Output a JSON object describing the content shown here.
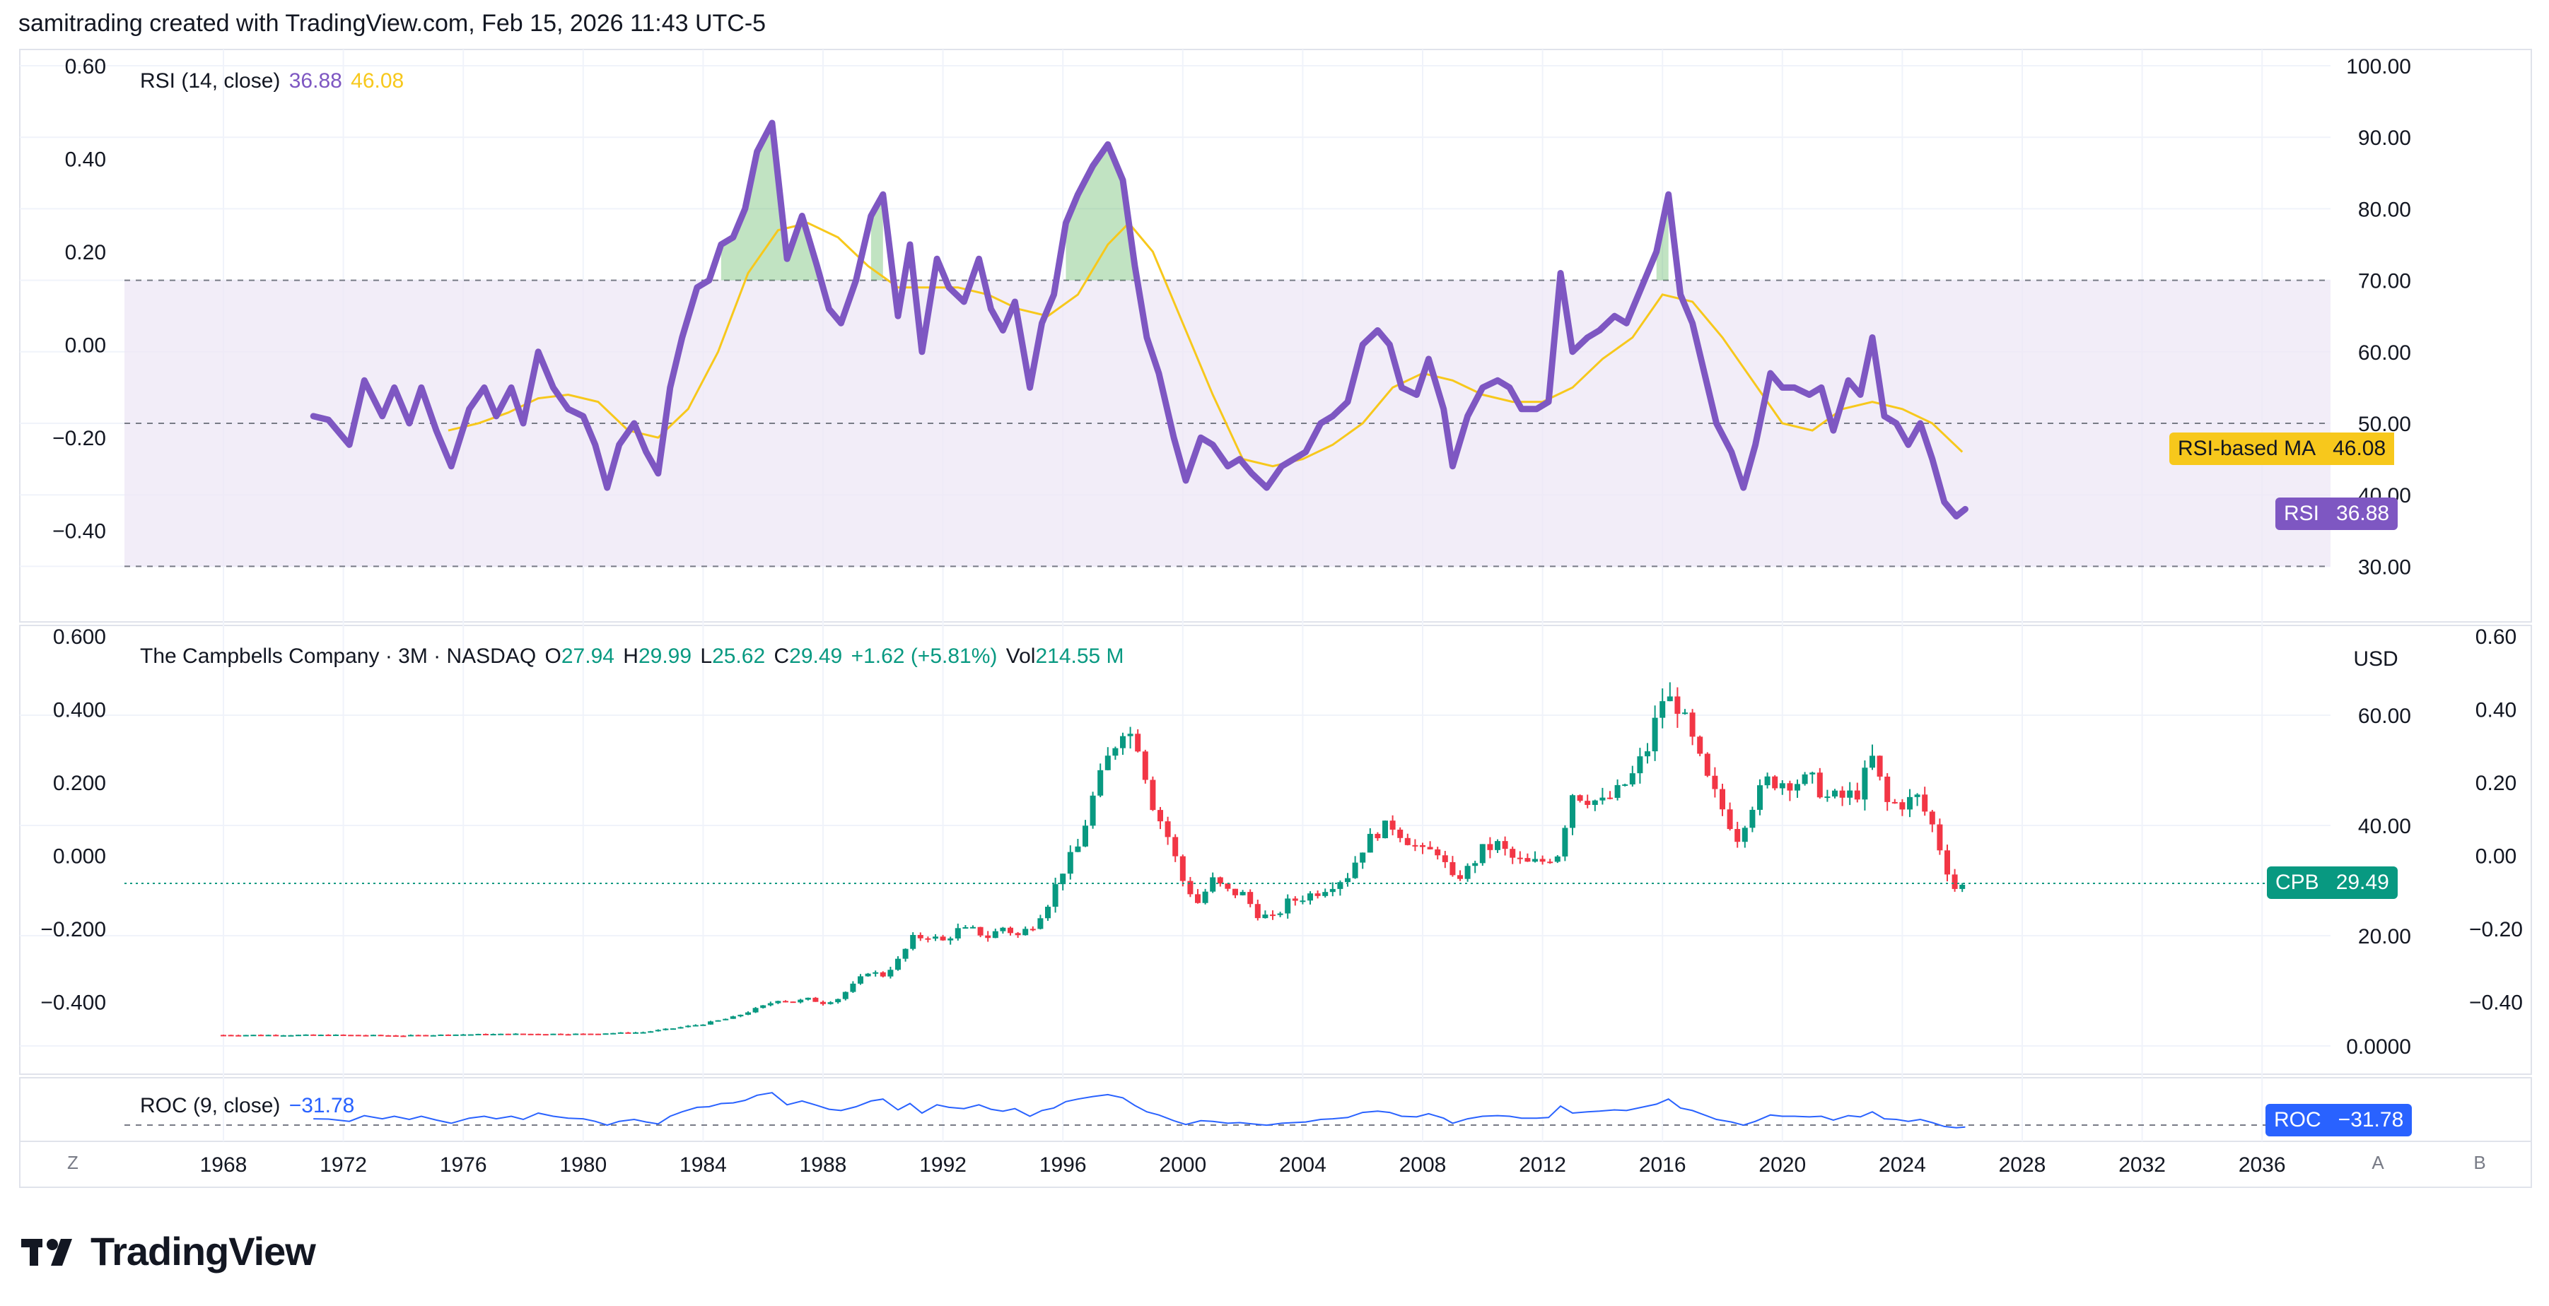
{
  "header": {
    "text": "samitrading created with TradingView.com, Feb 15, 2026 11:43 UTC-5"
  },
  "brand": {
    "name": "TradingView"
  },
  "colors": {
    "rsi": "#7e57c2",
    "rsi_ma": "#f7c81c",
    "up": "#089981",
    "down": "#f23645",
    "roc": "#2962ff",
    "band": "#ede7f6",
    "grid": "#f0f3fa",
    "ob_fill": "#4caf50"
  },
  "rsi_legend": {
    "label": "RSI (14, close)",
    "rsi_value": "36.88",
    "ma_value": "46.08"
  },
  "price_legend": {
    "symbol": "The Campbells Company · 3M · NASDAQ",
    "o_label": "O",
    "o": "27.94",
    "h_label": "H",
    "h": "29.99",
    "l_label": "L",
    "l": "25.62",
    "c_label": "C",
    "c": "29.49",
    "change": "+1.62 (+5.81%)",
    "vol_label": "Vol",
    "vol": "214.55 M"
  },
  "roc_legend": {
    "label": "ROC (9, close)",
    "value": "−31.78"
  },
  "tags": {
    "rsi_ma": {
      "key": "RSI-based MA",
      "value": "46.08"
    },
    "rsi": {
      "key": "RSI",
      "value": "36.88"
    },
    "cpb": {
      "key": "CPB",
      "value": "29.49"
    },
    "roc": {
      "key": "ROC",
      "value": "−31.78"
    }
  },
  "currency": "USD",
  "corner_buttons": {
    "z": "Z",
    "a": "A",
    "b": "B"
  },
  "chart_data": {
    "type": "line",
    "x_ticks": [
      "1968",
      "1972",
      "1976",
      "1980",
      "1984",
      "1988",
      "1992",
      "1996",
      "2000",
      "2004",
      "2008",
      "2012",
      "2016",
      "2020",
      "2024",
      "2028",
      "2032",
      "2036"
    ],
    "panes": {
      "rsi": {
        "left_ticks": [
          "0.60",
          "0.40",
          "0.20",
          "0.00",
          "−0.20",
          "−0.40"
        ],
        "right_ticks": [
          "100.00",
          "90.00",
          "80.00",
          "70.00",
          "60.00",
          "50.00",
          "40.00",
          "30.00"
        ],
        "ylim": [
          26,
          100
        ],
        "bands": [
          30,
          50,
          70
        ],
        "rsi_series": [
          [
            1971.0,
            51
          ],
          [
            1971.5,
            50.5
          ],
          [
            1972.2,
            47
          ],
          [
            1972.7,
            56
          ],
          [
            1973.3,
            51
          ],
          [
            1973.7,
            55
          ],
          [
            1974.2,
            50
          ],
          [
            1974.6,
            55
          ],
          [
            1975.1,
            49
          ],
          [
            1975.6,
            44
          ],
          [
            1976.2,
            52
          ],
          [
            1976.7,
            55
          ],
          [
            1977.1,
            51
          ],
          [
            1977.6,
            55
          ],
          [
            1978.0,
            50
          ],
          [
            1978.5,
            60
          ],
          [
            1979.0,
            55
          ],
          [
            1979.5,
            52
          ],
          [
            1980.0,
            51
          ],
          [
            1980.4,
            47
          ],
          [
            1980.8,
            41
          ],
          [
            1981.2,
            47
          ],
          [
            1981.7,
            50
          ],
          [
            1982.1,
            46
          ],
          [
            1982.5,
            43
          ],
          [
            1982.9,
            55
          ],
          [
            1983.3,
            62
          ],
          [
            1983.8,
            69
          ],
          [
            1984.2,
            70
          ],
          [
            1984.6,
            75
          ],
          [
            1985.0,
            76
          ],
          [
            1985.4,
            80
          ],
          [
            1985.8,
            88
          ],
          [
            1986.3,
            92
          ],
          [
            1986.8,
            73
          ],
          [
            1987.3,
            79
          ],
          [
            1987.8,
            72
          ],
          [
            1988.2,
            66
          ],
          [
            1988.6,
            64
          ],
          [
            1989.1,
            70
          ],
          [
            1989.6,
            79
          ],
          [
            1990.0,
            82
          ],
          [
            1990.5,
            65
          ],
          [
            1990.9,
            75
          ],
          [
            1991.3,
            60
          ],
          [
            1991.8,
            73
          ],
          [
            1992.2,
            69
          ],
          [
            1992.7,
            67
          ],
          [
            1993.2,
            73
          ],
          [
            1993.6,
            66
          ],
          [
            1994.0,
            63
          ],
          [
            1994.4,
            67
          ],
          [
            1994.9,
            55
          ],
          [
            1995.3,
            64
          ],
          [
            1995.7,
            68
          ],
          [
            1996.1,
            78
          ],
          [
            1996.5,
            82
          ],
          [
            1997.0,
            86
          ],
          [
            1997.5,
            89
          ],
          [
            1998.0,
            84
          ],
          [
            1998.4,
            72
          ],
          [
            1998.8,
            62
          ],
          [
            1999.2,
            57
          ],
          [
            1999.7,
            48
          ],
          [
            2000.1,
            42
          ],
          [
            2000.6,
            48
          ],
          [
            2001.0,
            47
          ],
          [
            2001.5,
            44
          ],
          [
            2001.9,
            45
          ],
          [
            2002.3,
            43
          ],
          [
            2002.8,
            41
          ],
          [
            2003.3,
            44
          ],
          [
            2003.7,
            45
          ],
          [
            2004.1,
            46
          ],
          [
            2004.6,
            50
          ],
          [
            2005.0,
            51
          ],
          [
            2005.5,
            53
          ],
          [
            2006.0,
            61
          ],
          [
            2006.5,
            63
          ],
          [
            2006.9,
            61
          ],
          [
            2007.3,
            55
          ],
          [
            2007.8,
            54
          ],
          [
            2008.2,
            59
          ],
          [
            2008.7,
            52
          ],
          [
            2009.0,
            44
          ],
          [
            2009.5,
            51
          ],
          [
            2010.0,
            55
          ],
          [
            2010.5,
            56
          ],
          [
            2010.9,
            55
          ],
          [
            2011.3,
            52
          ],
          [
            2011.8,
            52
          ],
          [
            2012.2,
            53
          ],
          [
            2012.6,
            71
          ],
          [
            2013.0,
            60
          ],
          [
            2013.5,
            62
          ],
          [
            2013.9,
            63
          ],
          [
            2014.4,
            65
          ],
          [
            2014.8,
            64
          ],
          [
            2015.3,
            69
          ],
          [
            2015.8,
            74
          ],
          [
            2016.2,
            82
          ],
          [
            2016.6,
            68
          ],
          [
            2017.0,
            64
          ],
          [
            2017.4,
            57
          ],
          [
            2017.8,
            50
          ],
          [
            2018.3,
            46
          ],
          [
            2018.7,
            41
          ],
          [
            2019.1,
            47
          ],
          [
            2019.6,
            57
          ],
          [
            2020.0,
            55
          ],
          [
            2020.4,
            55
          ],
          [
            2020.9,
            54
          ],
          [
            2021.3,
            55
          ],
          [
            2021.7,
            49
          ],
          [
            2022.2,
            56
          ],
          [
            2022.6,
            54
          ],
          [
            2023.0,
            62
          ],
          [
            2023.4,
            51
          ],
          [
            2023.8,
            50
          ],
          [
            2024.2,
            47
          ],
          [
            2024.6,
            50
          ],
          [
            2025.0,
            45
          ],
          [
            2025.4,
            39
          ],
          [
            2025.8,
            37
          ],
          [
            2026.1,
            38
          ]
        ],
        "ma_series": [
          [
            1975.5,
            49
          ],
          [
            1976.5,
            50
          ],
          [
            1977.5,
            51.5
          ],
          [
            1978.5,
            53.5
          ],
          [
            1979.5,
            54
          ],
          [
            1980.5,
            53
          ],
          [
            1981.5,
            49
          ],
          [
            1982.5,
            48
          ],
          [
            1983.5,
            52
          ],
          [
            1984.5,
            60
          ],
          [
            1985.5,
            71
          ],
          [
            1986.5,
            77
          ],
          [
            1987.5,
            78
          ],
          [
            1988.5,
            76
          ],
          [
            1989.5,
            72
          ],
          [
            1990.5,
            69
          ],
          [
            1991.5,
            69
          ],
          [
            1992.5,
            69
          ],
          [
            1993.5,
            68
          ],
          [
            1994.5,
            66
          ],
          [
            1995.5,
            65
          ],
          [
            1996.5,
            68
          ],
          [
            1997.5,
            75
          ],
          [
            1998.2,
            78
          ],
          [
            1999.0,
            74
          ],
          [
            2000.0,
            64
          ],
          [
            2001.0,
            54
          ],
          [
            2002.0,
            45
          ],
          [
            2003.0,
            44
          ],
          [
            2004.0,
            45
          ],
          [
            2005.0,
            47
          ],
          [
            2006.0,
            50
          ],
          [
            2007.0,
            55
          ],
          [
            2008.0,
            57
          ],
          [
            2009.0,
            56
          ],
          [
            2010.0,
            54
          ],
          [
            2011.0,
            53
          ],
          [
            2012.0,
            53
          ],
          [
            2013.0,
            55
          ],
          [
            2014.0,
            59
          ],
          [
            2015.0,
            62
          ],
          [
            2016.0,
            68
          ],
          [
            2017.0,
            67
          ],
          [
            2018.0,
            62
          ],
          [
            2019.0,
            56
          ],
          [
            2020.0,
            50
          ],
          [
            2021.0,
            49
          ],
          [
            2022.0,
            52
          ],
          [
            2023.0,
            53
          ],
          [
            2024.0,
            52
          ],
          [
            2025.0,
            50
          ],
          [
            2026.0,
            46
          ]
        ]
      },
      "price": {
        "left_ticks": [
          "0.600",
          "0.400",
          "0.200",
          "0.000",
          "−0.200",
          "−0.400"
        ],
        "right_ticks": [
          "60.00",
          "40.00",
          "20.00",
          "0.0000"
        ],
        "right_outer_ticks": [
          "0.60",
          "0.40",
          "0.20",
          "0.00",
          "−0.20",
          "−0.40"
        ],
        "ylim": [
          -5,
          72
        ],
        "last": 29.49,
        "closes": [
          [
            1968,
            2.0
          ],
          [
            1970,
            2.0
          ],
          [
            1972,
            2.0
          ],
          [
            1974,
            1.9
          ],
          [
            1976,
            2.1
          ],
          [
            1978,
            2.2
          ],
          [
            1980,
            2.2
          ],
          [
            1982,
            2.5
          ],
          [
            1983,
            3.2
          ],
          [
            1984,
            4.0
          ],
          [
            1985,
            5.2
          ],
          [
            1986,
            7.2
          ],
          [
            1986.5,
            8.4
          ],
          [
            1987,
            8.0
          ],
          [
            1987.5,
            8.5
          ],
          [
            1988,
            7.8
          ],
          [
            1988.5,
            8.6
          ],
          [
            1989,
            11.0
          ],
          [
            1989.5,
            13.5
          ],
          [
            1990,
            12.8
          ],
          [
            1990.5,
            15.5
          ],
          [
            1991,
            19.5
          ],
          [
            1991.5,
            20.0
          ],
          [
            1992,
            19.0
          ],
          [
            1992.5,
            21.0
          ],
          [
            1993,
            21.0
          ],
          [
            1993.5,
            19.8
          ],
          [
            1994,
            21.5
          ],
          [
            1994.5,
            20.0
          ],
          [
            1995,
            22.0
          ],
          [
            1995.5,
            26.0
          ],
          [
            1996,
            32.0
          ],
          [
            1996.5,
            36.0
          ],
          [
            1997,
            45.0
          ],
          [
            1997.5,
            52.0
          ],
          [
            1998,
            58.0
          ],
          [
            1998.5,
            55.0
          ],
          [
            1999,
            44.0
          ],
          [
            1999.5,
            38.0
          ],
          [
            2000,
            30.0
          ],
          [
            2000.5,
            26.0
          ],
          [
            2001,
            30.0
          ],
          [
            2001.5,
            28.0
          ],
          [
            2002,
            27.5
          ],
          [
            2002.5,
            24.0
          ],
          [
            2003,
            23.0
          ],
          [
            2003.5,
            26.0
          ],
          [
            2004,
            27.0
          ],
          [
            2004.5,
            28.0
          ],
          [
            2005,
            29.5
          ],
          [
            2005.5,
            31.0
          ],
          [
            2006,
            36.0
          ],
          [
            2006.5,
            39.0
          ],
          [
            2007,
            40.0
          ],
          [
            2007.5,
            37.5
          ],
          [
            2008,
            35.0
          ],
          [
            2008.5,
            35.5
          ],
          [
            2009,
            30.0
          ],
          [
            2009.5,
            32.0
          ],
          [
            2010,
            35.5
          ],
          [
            2010.5,
            36.5
          ],
          [
            2011,
            34.0
          ],
          [
            2011.5,
            33.0
          ],
          [
            2012,
            33.5
          ],
          [
            2012.5,
            35.0
          ],
          [
            2013,
            46.0
          ],
          [
            2013.5,
            45.0
          ],
          [
            2014,
            44.0
          ],
          [
            2014.5,
            46.0
          ],
          [
            2015,
            49.0
          ],
          [
            2015.5,
            54.0
          ],
          [
            2016,
            63.0
          ],
          [
            2016.5,
            62.0
          ],
          [
            2017,
            55.0
          ],
          [
            2017.5,
            48.0
          ],
          [
            2018,
            43.0
          ],
          [
            2018.5,
            38.0
          ],
          [
            2019,
            44.0
          ],
          [
            2019.5,
            48.0
          ],
          [
            2020,
            48.0
          ],
          [
            2020.5,
            48.0
          ],
          [
            2021,
            48.0
          ],
          [
            2021.5,
            45.0
          ],
          [
            2022,
            45.0
          ],
          [
            2022.5,
            46.0
          ],
          [
            2023,
            52.0
          ],
          [
            2023.5,
            44.0
          ],
          [
            2024,
            44.0
          ],
          [
            2024.5,
            45.0
          ],
          [
            2025,
            40.0
          ],
          [
            2025.5,
            32.0
          ],
          [
            2025.8,
            28.0
          ],
          [
            2026.1,
            29.49
          ]
        ]
      },
      "roc": {
        "last": -31.78
      }
    }
  }
}
